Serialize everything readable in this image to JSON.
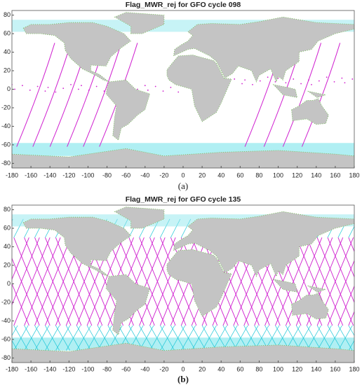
{
  "chart_data": [
    {
      "type": "map",
      "title": "Flag_MWR_rej for GFO cycle 098",
      "label": "(a)",
      "pattern": "sparse",
      "xlim": [
        -180,
        180
      ],
      "ylim": [
        -85,
        85
      ],
      "xticks": [
        -180,
        -160,
        -140,
        -120,
        -100,
        -80,
        -60,
        -40,
        -20,
        0,
        20,
        40,
        60,
        80,
        100,
        120,
        140,
        160,
        180
      ],
      "yticks": [
        -80,
        -60,
        -40,
        -20,
        0,
        20,
        40,
        60,
        80
      ]
    },
    {
      "type": "map",
      "title": "Flag_MWR_rej for GFO cycle 135",
      "label": "(b)",
      "pattern": "dense",
      "xlim": [
        -180,
        180
      ],
      "ylim": [
        -85,
        85
      ],
      "xticks": [
        -180,
        -160,
        -140,
        -120,
        -100,
        -80,
        -60,
        -40,
        -20,
        0,
        20,
        40,
        60,
        80,
        100,
        120,
        140,
        160,
        180
      ],
      "yticks": [
        -80,
        -60,
        -40,
        -20,
        0,
        20,
        40,
        60,
        80
      ]
    }
  ]
}
